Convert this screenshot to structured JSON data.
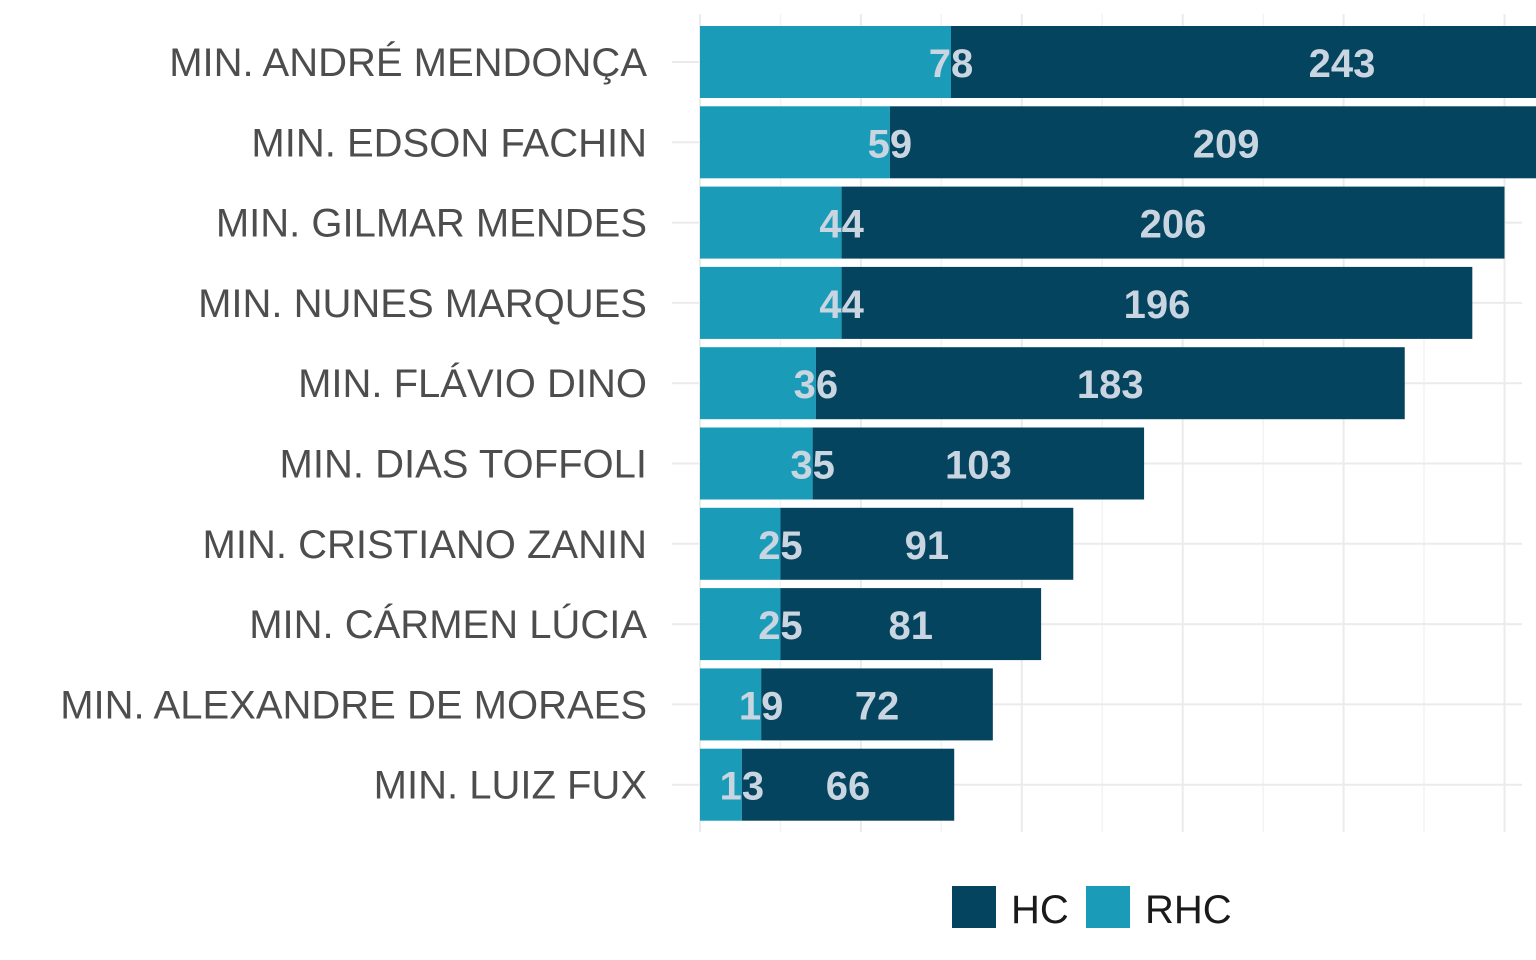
{
  "chart_data": {
    "type": "bar",
    "orientation": "horizontal",
    "stacked": true,
    "categories": [
      "MIN. ANDRÉ MENDONÇA",
      "MIN. EDSON FACHIN",
      "MIN. GILMAR MENDES",
      "MIN. NUNES MARQUES",
      "MIN. FLÁVIO DINO",
      "MIN. DIAS TOFFOLI",
      "MIN. CRISTIANO ZANIN",
      "MIN. CÁRMEN LÚCIA",
      "MIN. ALEXANDRE DE MORAES",
      "MIN. LUIZ FUX"
    ],
    "series": [
      {
        "name": "RHC",
        "color": "#1a9bb8",
        "values": [
          78,
          59,
          44,
          44,
          36,
          35,
          25,
          25,
          19,
          13
        ]
      },
      {
        "name": "HC",
        "color": "#05445e",
        "values": [
          243,
          209,
          206,
          196,
          183,
          103,
          91,
          81,
          72,
          66
        ]
      }
    ],
    "xlim": [
      0,
      335
    ],
    "grid": true,
    "legend": {
      "position": "bottom",
      "entries": [
        "HC",
        "RHC"
      ]
    }
  }
}
